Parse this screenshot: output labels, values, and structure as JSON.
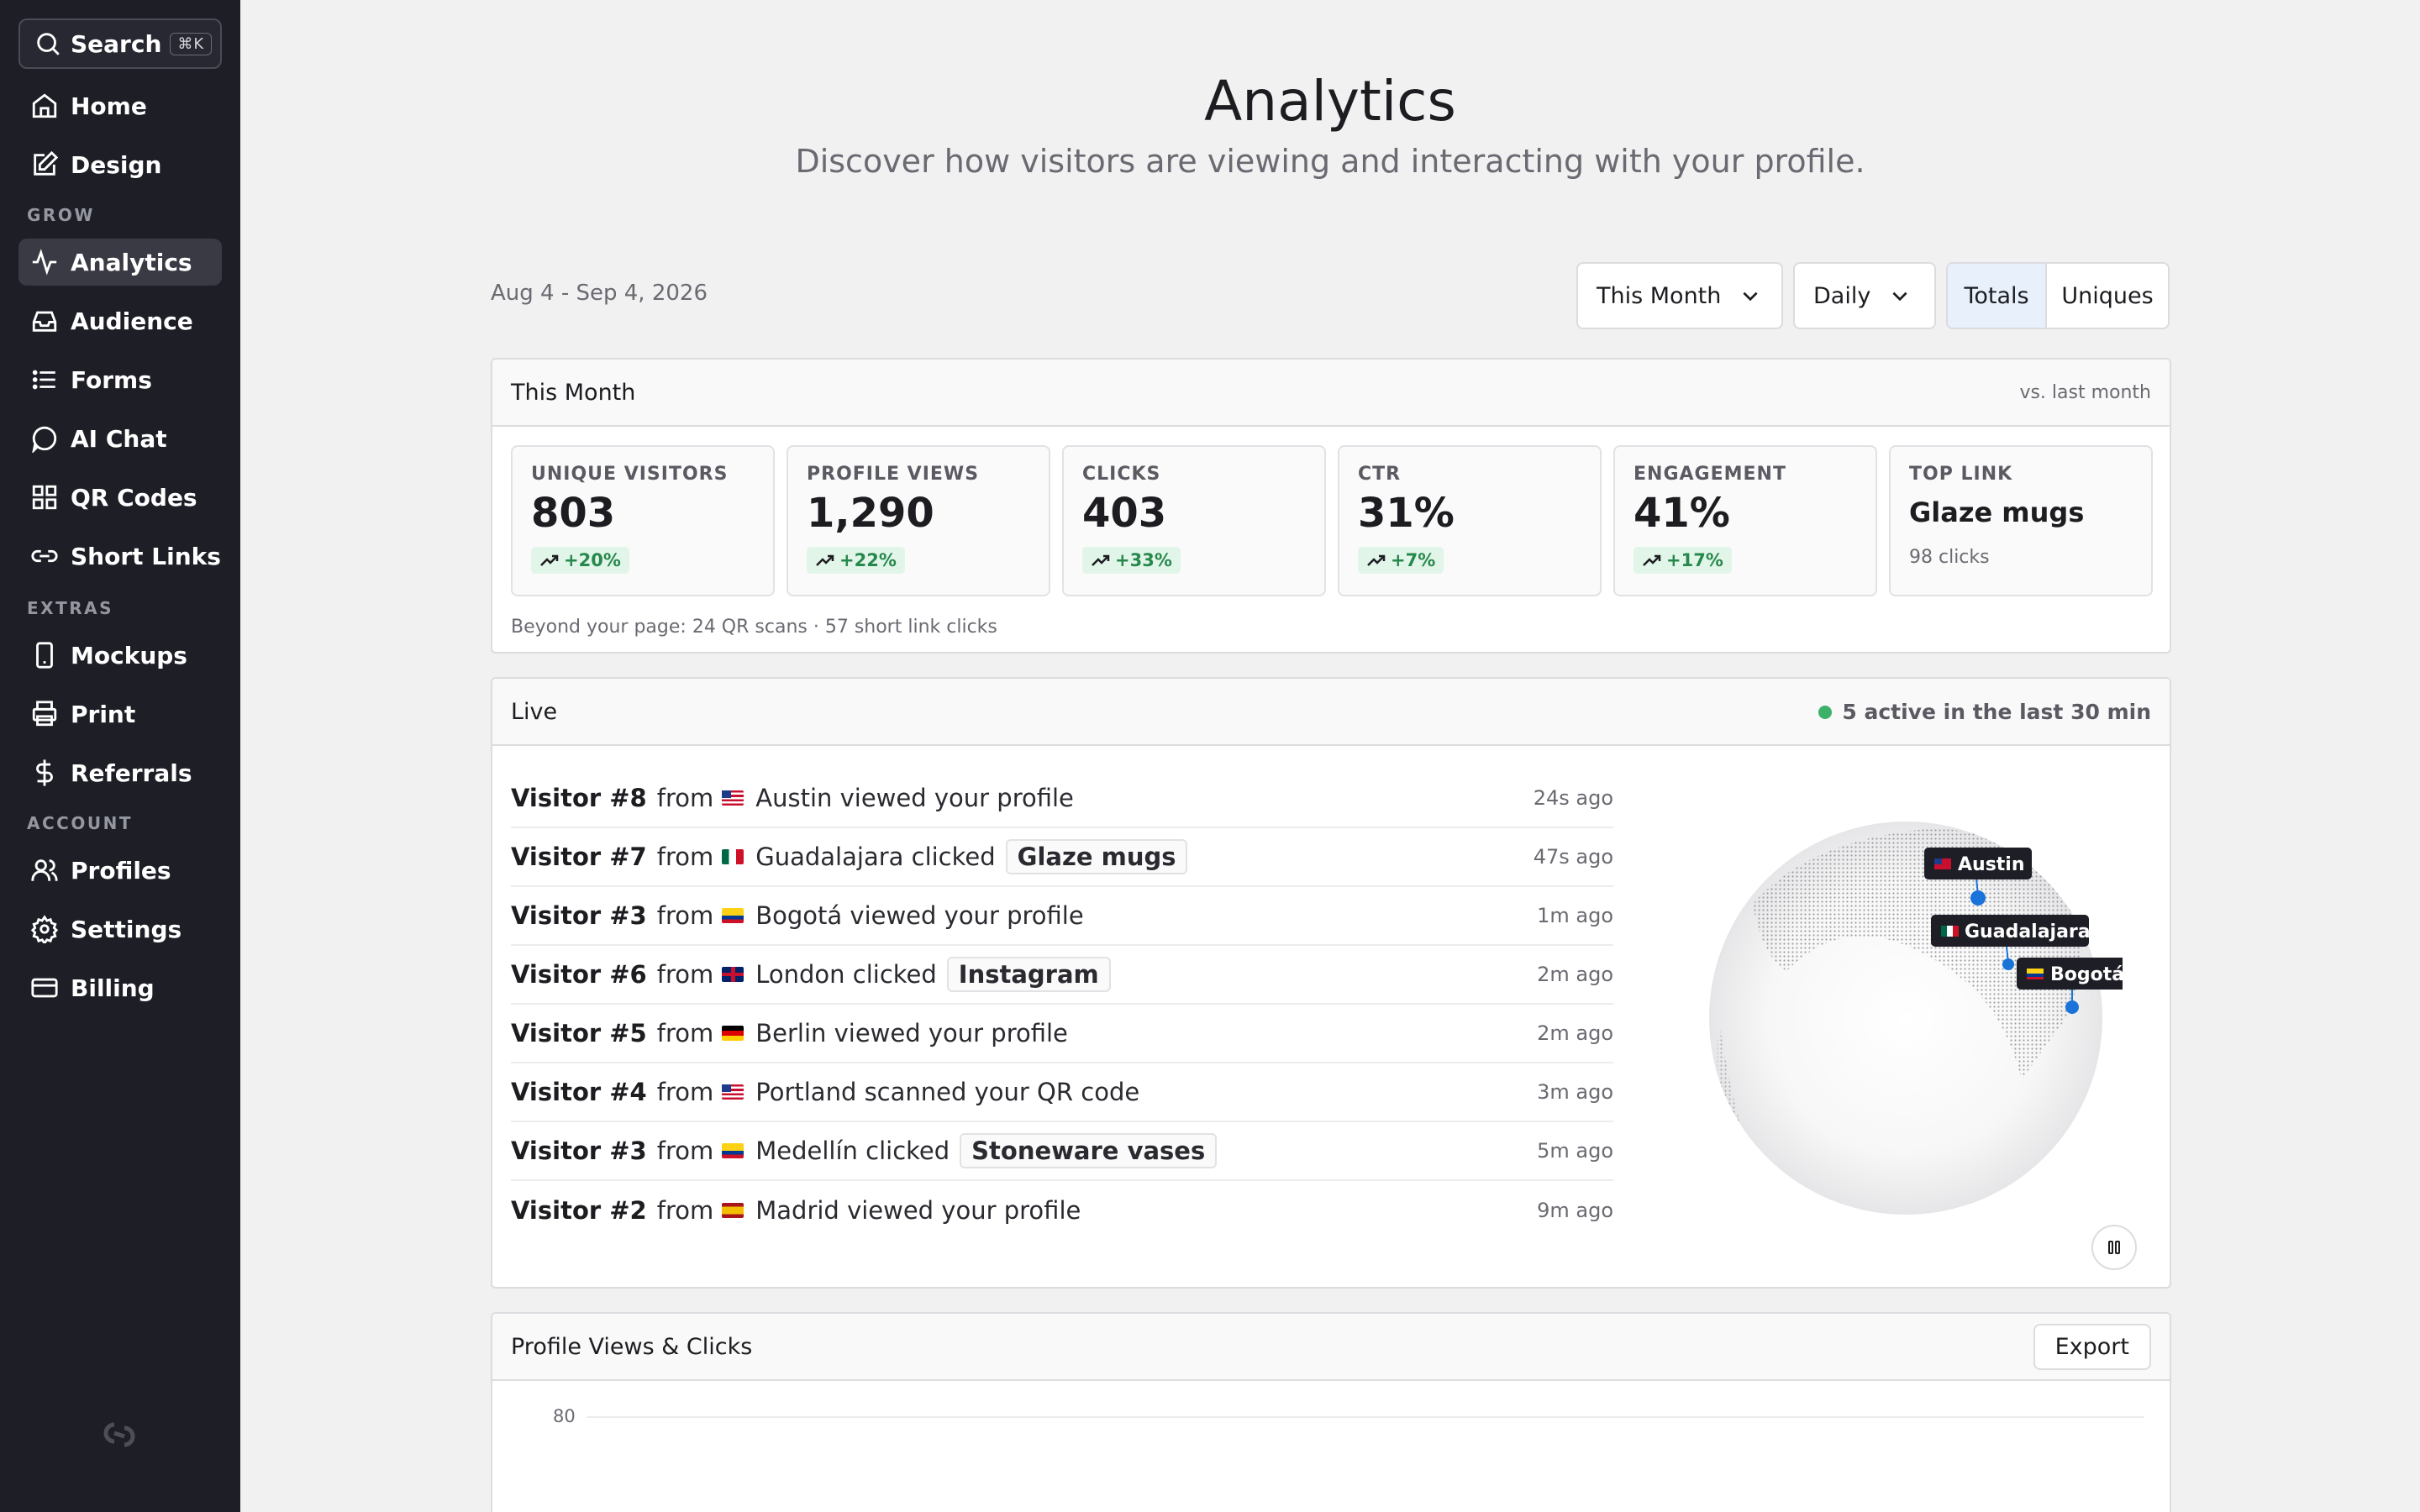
{
  "sidebar": {
    "search": {
      "label": "Search",
      "shortcut": "⌘K"
    },
    "sections": {
      "grow": "GROW",
      "extras": "EXTRAS",
      "account": "ACCOUNT"
    },
    "items": {
      "home": "Home",
      "design": "Design",
      "analytics": "Analytics",
      "audience": "Audience",
      "forms": "Forms",
      "ai_chat": "AI Chat",
      "qr_codes": "QR Codes",
      "short_links": "Short Links",
      "mockups": "Mockups",
      "print": "Print",
      "referrals": "Referrals",
      "profiles": "Profiles",
      "settings": "Settings",
      "billing": "Billing"
    },
    "active": "analytics"
  },
  "header": {
    "title": "Analytics",
    "subtitle": "Discover how visitors are viewing and interacting with your profile."
  },
  "filters": {
    "date_range": "Aug 4 - Sep 4, 2026",
    "period": "This Month",
    "granularity": "Daily",
    "mode_totals": "Totals",
    "mode_uniques": "Uniques",
    "selected_mode": "Totals"
  },
  "summary": {
    "title": "This Month",
    "comparison": "vs. last month",
    "stats": [
      {
        "label": "UNIQUE VISITORS",
        "value": "803",
        "delta": "+20%"
      },
      {
        "label": "PROFILE VIEWS",
        "value": "1,290",
        "delta": "+22%"
      },
      {
        "label": "CLICKS",
        "value": "403",
        "delta": "+33%"
      },
      {
        "label": "CTR",
        "value": "31%",
        "delta": "+7%"
      },
      {
        "label": "ENGAGEMENT",
        "value": "41%",
        "delta": "+17%"
      }
    ],
    "top_link": {
      "label": "TOP LINK",
      "value": "Glaze mugs",
      "sub": "98 clicks"
    },
    "beyond": "Beyond your page: 24 QR scans · 57 short link clicks"
  },
  "live": {
    "title": "Live",
    "activity": "5 active in the last 30 min",
    "from_word": "from",
    "rows": [
      {
        "visitor": "Visitor #8",
        "city": "Austin",
        "action": "viewed your profile",
        "link": "",
        "ago": "24s ago",
        "flag": "us"
      },
      {
        "visitor": "Visitor #7",
        "city": "Guadalajara",
        "action": "clicked",
        "link": "Glaze mugs",
        "ago": "47s ago",
        "flag": "mx"
      },
      {
        "visitor": "Visitor #3",
        "city": "Bogotá",
        "action": "viewed your profile",
        "link": "",
        "ago": "1m ago",
        "flag": "co"
      },
      {
        "visitor": "Visitor #6",
        "city": "London",
        "action": "clicked",
        "link": "Instagram",
        "ago": "2m ago",
        "flag": "gb"
      },
      {
        "visitor": "Visitor #5",
        "city": "Berlin",
        "action": "viewed your profile",
        "link": "",
        "ago": "2m ago",
        "flag": "de"
      },
      {
        "visitor": "Visitor #4",
        "city": "Portland",
        "action": "scanned your QR code",
        "link": "",
        "ago": "3m ago",
        "flag": "us"
      },
      {
        "visitor": "Visitor #3",
        "city": "Medellín",
        "action": "clicked",
        "link": "Stoneware vases",
        "ago": "5m ago",
        "flag": "co"
      },
      {
        "visitor": "Visitor #2",
        "city": "Madrid",
        "action": "viewed your profile",
        "link": "",
        "ago": "9m ago",
        "flag": "es"
      }
    ],
    "globe_labels": [
      "Austin",
      "Guadalajara",
      "Bogotá"
    ]
  },
  "chart": {
    "title": "Profile Views & Clicks",
    "export_label": "Export",
    "y_top_tick": "80"
  },
  "colors": {
    "sidebar_bg": "#1d1e26",
    "accent_blue": "#1a73d9",
    "positive_green": "#27884d",
    "live_green": "#3db06a"
  }
}
